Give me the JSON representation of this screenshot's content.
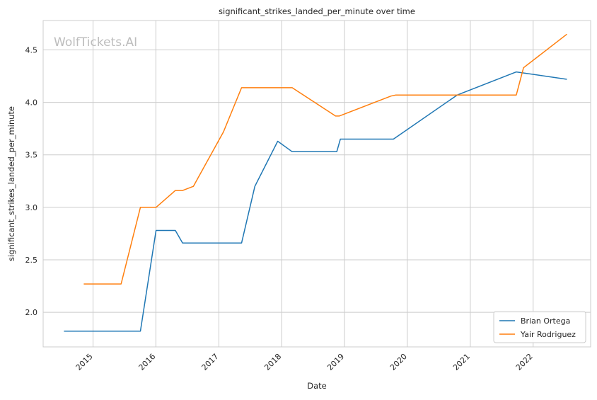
{
  "chart_data": {
    "type": "line",
    "title": "significant_strikes_landed_per_minute over time",
    "xlabel": "Date",
    "ylabel": "significant_strikes_landed_per_minute",
    "watermark": "WolfTickets.AI",
    "xlim": [
      "2014-03-17",
      "2022-12-01"
    ],
    "ylim": [
      1.67,
      4.78
    ],
    "x_ticks": [
      "2015",
      "2016",
      "2017",
      "2018",
      "2019",
      "2020",
      "2021",
      "2022"
    ],
    "y_ticks": [
      "2.0",
      "2.5",
      "3.0",
      "3.5",
      "4.0",
      "4.5"
    ],
    "grid": true,
    "legend_position": "lower-right",
    "series": [
      {
        "name": "Brian Ortega",
        "color": "#1f77b4",
        "points": [
          [
            "2014-07-16",
            1.82
          ],
          [
            "2015-10-03",
            1.82
          ],
          [
            "2016-01-02",
            2.78
          ],
          [
            "2016-04-23",
            2.78
          ],
          [
            "2016-06-04",
            2.66
          ],
          [
            "2017-05-13",
            2.66
          ],
          [
            "2017-07-29",
            3.2
          ],
          [
            "2017-12-09",
            3.63
          ],
          [
            "2018-03-03",
            3.53
          ],
          [
            "2018-11-17",
            3.53
          ],
          [
            "2018-12-08",
            3.65
          ],
          [
            "2019-10-12",
            3.65
          ],
          [
            "2020-10-17",
            4.07
          ],
          [
            "2021-09-25",
            4.29
          ],
          [
            "2022-07-16",
            4.22
          ]
        ]
      },
      {
        "name": "Yair Rodriguez",
        "color": "#ff7f0e",
        "points": [
          [
            "2014-11-08",
            2.27
          ],
          [
            "2015-06-13",
            2.27
          ],
          [
            "2015-10-03",
            3.0
          ],
          [
            "2016-01-02",
            3.0
          ],
          [
            "2016-04-23",
            3.16
          ],
          [
            "2016-06-04",
            3.16
          ],
          [
            "2016-08-06",
            3.2
          ],
          [
            "2017-01-28",
            3.72
          ],
          [
            "2017-05-13",
            4.14
          ],
          [
            "2018-03-03",
            4.14
          ],
          [
            "2018-11-10",
            3.87
          ],
          [
            "2018-12-01",
            3.87
          ],
          [
            "2019-09-28",
            4.06
          ],
          [
            "2019-10-26",
            4.07
          ],
          [
            "2021-09-25",
            4.07
          ],
          [
            "2021-11-06",
            4.33
          ],
          [
            "2022-07-16",
            4.65
          ]
        ]
      }
    ]
  }
}
